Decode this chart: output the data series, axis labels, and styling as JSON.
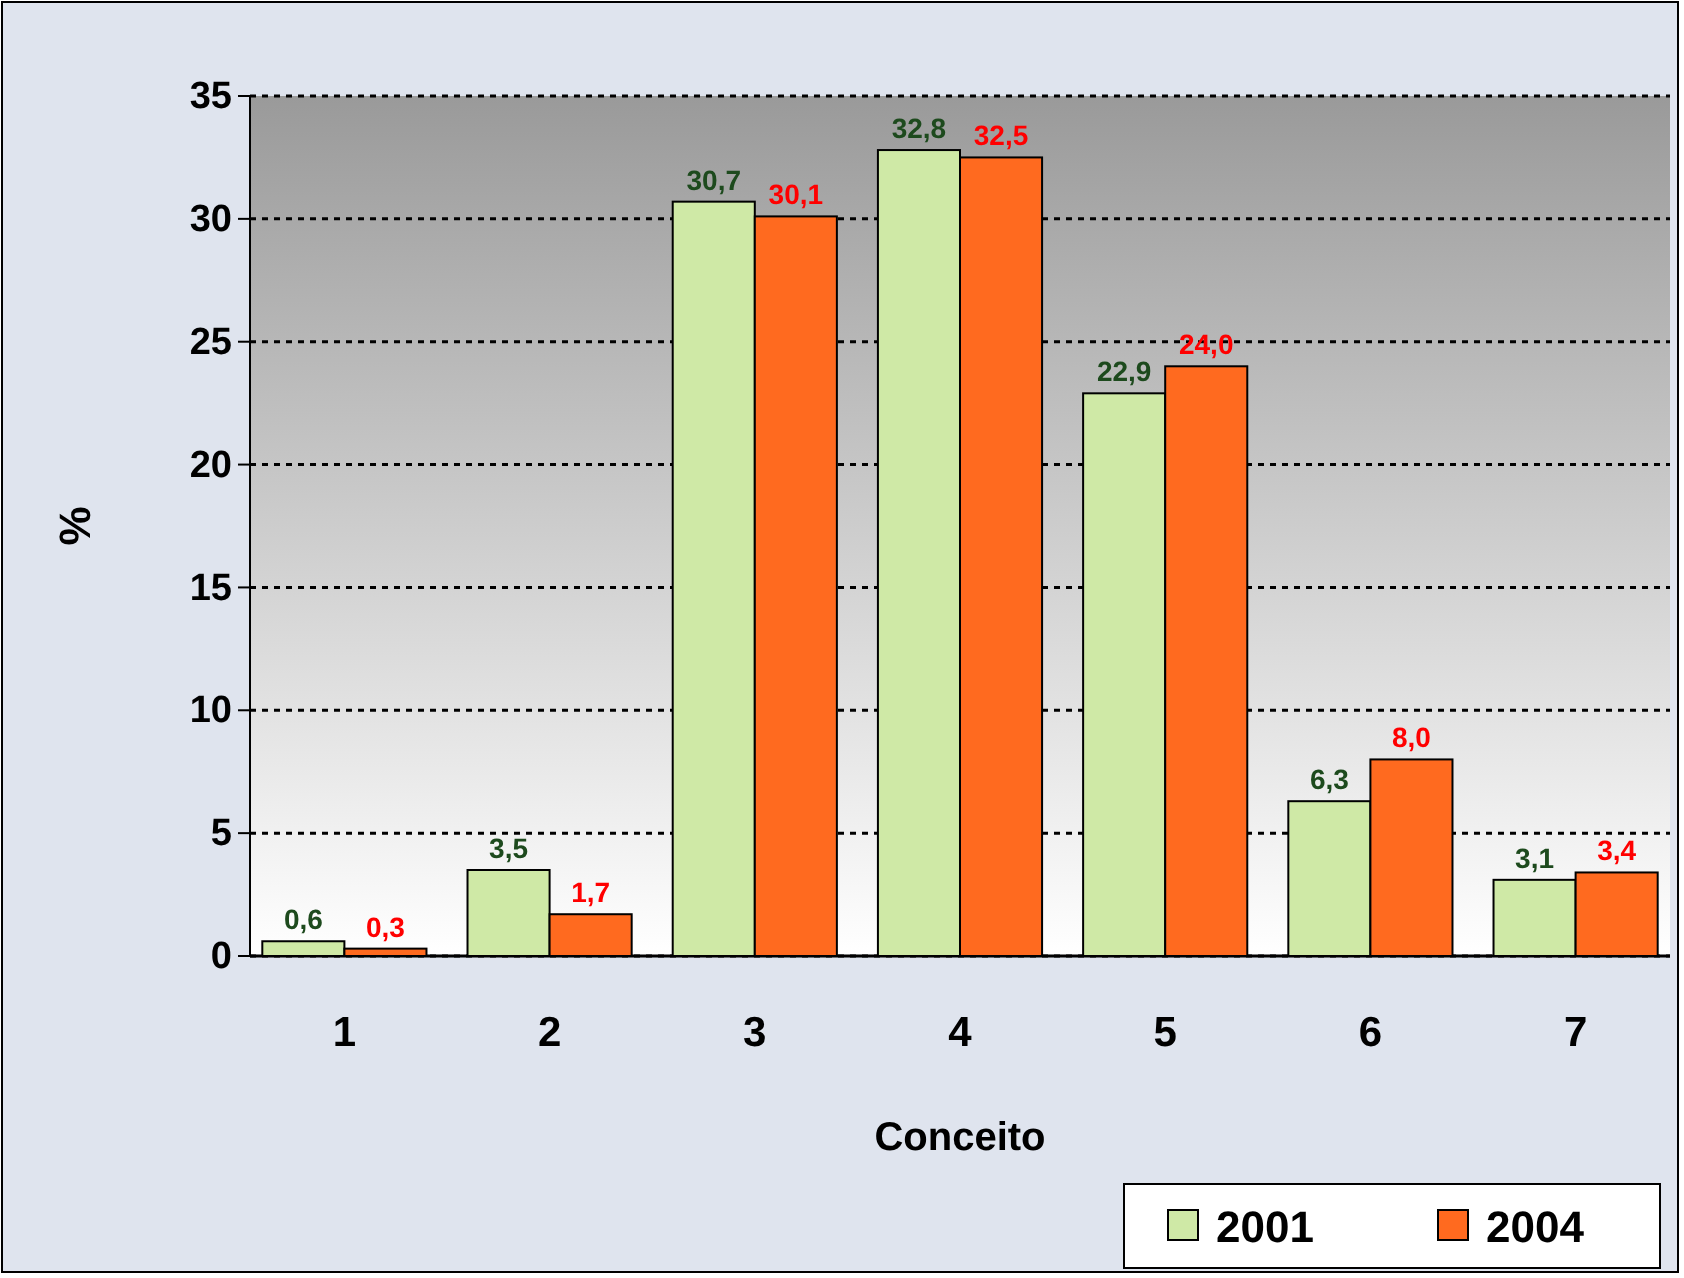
{
  "chart_data": {
    "type": "bar",
    "xlabel": "Conceito",
    "ylabel": "%",
    "categories": [
      "1",
      "2",
      "3",
      "4",
      "5",
      "6",
      "7"
    ],
    "series": [
      {
        "name": "2001",
        "color": "#cfe9a6",
        "values": [
          0.6,
          3.5,
          30.7,
          32.8,
          22.9,
          6.3,
          3.1
        ],
        "value_labels": [
          "0,6",
          "3,5",
          "30,7",
          "32,8",
          "22,9",
          "6,3",
          "3,1"
        ]
      },
      {
        "name": "2004",
        "color": "#ff6a1f",
        "values": [
          0.3,
          1.7,
          30.1,
          32.5,
          24.0,
          8.0,
          3.4
        ],
        "value_labels": [
          "0,3",
          "1,7",
          "30,1",
          "32,5",
          "24,0",
          "8,0",
          "3,4"
        ]
      }
    ],
    "ylim": [
      0,
      35
    ],
    "yticks": [
      0,
      5,
      10,
      15,
      20,
      25,
      30,
      35
    ],
    "grid": "y",
    "legend": "bottom right"
  }
}
